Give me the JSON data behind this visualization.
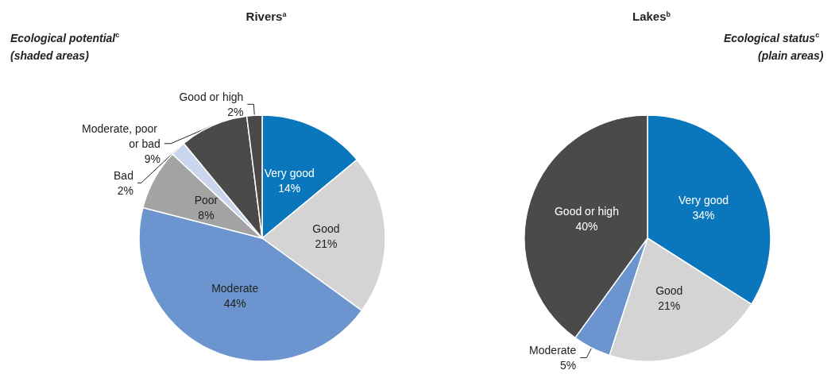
{
  "chart_data": [
    {
      "type": "pie",
      "title": "Rivers$^{a}$",
      "categories": [
        "Very good",
        "Good",
        "Moderate",
        "Poor",
        "Bad",
        "Moderate, poor or bad",
        "Good or high"
      ],
      "values": [
        14,
        21,
        44,
        8,
        2,
        9,
        2
      ],
      "value_labels": [
        "14%",
        "21%",
        "44%",
        "8%",
        "2%",
        "9%",
        "2%"
      ],
      "colors": [
        "#0a77bd",
        "#d4d4d4",
        "#6c95cf",
        "#a3a3a3",
        "#c9d6ee",
        "#4a4a4a",
        "#4a4a4a"
      ],
      "annotations": [
        "Ecological potential$^{c}$",
        "(shaded areas)"
      ]
    },
    {
      "type": "pie",
      "title": "Lakes$^{b}$",
      "categories": [
        "Very good",
        "Good",
        "Moderate",
        "Good or high"
      ],
      "values": [
        34,
        21,
        5,
        40
      ],
      "value_labels": [
        "34%",
        "21%",
        "5%",
        "40%"
      ],
      "colors": [
        "#0a77bd",
        "#d4d4d4",
        "#6c95cf",
        "#4a4a4a"
      ],
      "annotations": [
        "Ecological status$^{c}$",
        "(plain areas)"
      ]
    }
  ]
}
